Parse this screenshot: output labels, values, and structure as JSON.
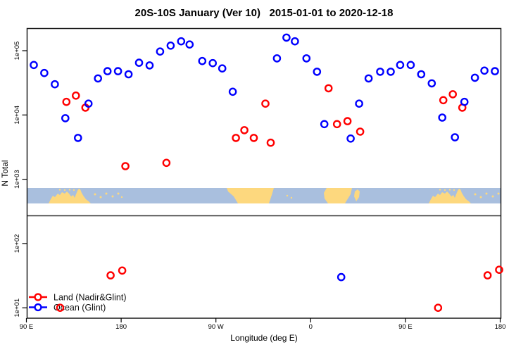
{
  "title": "20S-10S January (Ver 10)   2015-01-01 to 2020-12-18",
  "axes": {
    "x_label": "Longitude (deg E)",
    "y_label": "N Total",
    "x_ticks": [
      {
        "lon": 90,
        "label": "90 E"
      },
      {
        "lon": 180,
        "label": "180"
      },
      {
        "lon": 270,
        "label": "90 W"
      },
      {
        "lon": 360,
        "label": "0"
      },
      {
        "lon": 450,
        "label": "90 E"
      },
      {
        "lon": 540,
        "label": "180"
      }
    ],
    "y_ticks": [
      {
        "value": 100000,
        "label": "1e+05"
      },
      {
        "value": 10000,
        "label": "1e+04"
      },
      {
        "value": 1000,
        "label": "1e+03"
      },
      {
        "value": 100,
        "label": "1e+02"
      },
      {
        "value": 10,
        "label": "1e+01"
      }
    ]
  },
  "legend": {
    "items": [
      {
        "label": "Land (Nadir&Glint)",
        "color": "#ff0000"
      },
      {
        "label": "Ocean (Glint)",
        "color": "#0000ff"
      }
    ]
  },
  "colors": {
    "land_series": "#ff0000",
    "ocean_series": "#0000ff",
    "map_ocean": "#a9bfde",
    "map_land": "#fdd87e",
    "frame": "#1a1a1a"
  },
  "map_strip": {
    "ocean_color": "#a9bfde",
    "land_color": "#fdd87e",
    "land_paths": [
      "M30,22 L33,16 L36,11 L39,13 L43,8 L46,10 L49,6 L53,8 L56,5 L59,8 L62,12 L65,10 L67,14 L69,9 L71,4 L73,1 L75,2 L77,7 L80,12 L83,16 L87,19 L90,22 Z",
      "M283,0 L350,0 L347,10 L343,22 L299,22 L293,12 L285,5 Z",
      "M425,0 L461,0 L459,9 L454,17 L451,22 L427,22 L422,15 L421,7 Z",
      "M465,5 L469,2 L472,5 L471,13 L467,19 L464,12 Z"
    ],
    "island_dots": [
      [
        46,
        2.5,
        1.2
      ],
      [
        53,
        3,
        1.2
      ],
      [
        60,
        2.5,
        1.2
      ],
      [
        66,
        3,
        1.2
      ],
      [
        96,
        9,
        1.5
      ],
      [
        104,
        13,
        1.5
      ],
      [
        112,
        8,
        1.5
      ],
      [
        121,
        12,
        1.5
      ],
      [
        129,
        8,
        1.5
      ],
      [
        134,
        13,
        1.2
      ],
      [
        369,
        11,
        1.2
      ],
      [
        375,
        14,
        1.2
      ]
    ]
  },
  "chart_data": {
    "type": "scatter",
    "title": "20S-10S January (Ver 10)   2015-01-01 to 2020-12-18",
    "xlabel": "Longitude (deg E)",
    "ylabel": "N Total",
    "x_axis": {
      "range": [
        88,
        542
      ],
      "ticks": [
        90,
        180,
        270,
        360,
        450,
        540
      ],
      "tick_labels": [
        "90 E",
        "180",
        "90 W",
        "0",
        "90 E",
        "180"
      ]
    },
    "y_axis": {
      "scale": "log",
      "ticks": [
        100000,
        10000,
        1000,
        100,
        10
      ],
      "tick_labels": [
        "1e+05",
        "1e+04",
        "1e+03",
        "1e+02",
        "1e+01"
      ]
    },
    "point_format": [
      "longitude_degE_continuous",
      "N_total"
    ],
    "series": [
      {
        "name": "Land (Nadir&Glint)",
        "color": "#ff0000",
        "marker": "open-circle",
        "points": [
          [
            128,
            16000
          ],
          [
            137,
            20000
          ],
          [
            146,
            13000
          ],
          [
            184,
            1600
          ],
          [
            223,
            1800
          ],
          [
            289,
            4400
          ],
          [
            297,
            5800
          ],
          [
            306,
            4400
          ],
          [
            317,
            15000
          ],
          [
            322,
            3700
          ],
          [
            377,
            26000
          ],
          [
            385,
            7200
          ],
          [
            395,
            8000
          ],
          [
            407,
            5500
          ],
          [
            486,
            17000
          ],
          [
            495,
            21000
          ],
          [
            504,
            13000
          ],
          [
            122,
            10
          ],
          [
            170,
            32
          ],
          [
            181,
            38
          ],
          [
            481,
            10
          ],
          [
            528,
            32
          ],
          [
            539,
            39
          ]
        ]
      },
      {
        "name": "Ocean (Glint)",
        "color": "#0000ff",
        "marker": "open-circle",
        "points": [
          [
            97,
            60000
          ],
          [
            107,
            45000
          ],
          [
            117,
            30000
          ],
          [
            127,
            8900
          ],
          [
            139,
            4400
          ],
          [
            149,
            15000
          ],
          [
            158,
            37000
          ],
          [
            167,
            48000
          ],
          [
            177,
            48000
          ],
          [
            187,
            43000
          ],
          [
            197,
            65000
          ],
          [
            207,
            59000
          ],
          [
            217,
            97000
          ],
          [
            227,
            120000
          ],
          [
            237,
            140000
          ],
          [
            245,
            125000
          ],
          [
            257,
            69000
          ],
          [
            267,
            64000
          ],
          [
            276,
            53000
          ],
          [
            286,
            23000
          ],
          [
            328,
            76000
          ],
          [
            337,
            160000
          ],
          [
            345,
            140000
          ],
          [
            356,
            76000
          ],
          [
            366,
            47000
          ],
          [
            373,
            7200
          ],
          [
            398,
            4300
          ],
          [
            406,
            15000
          ],
          [
            415,
            37000
          ],
          [
            426,
            47000
          ],
          [
            436,
            47000
          ],
          [
            445,
            60000
          ],
          [
            455,
            60000
          ],
          [
            465,
            43000
          ],
          [
            475,
            31000
          ],
          [
            485,
            9100
          ],
          [
            497,
            4500
          ],
          [
            506,
            16000
          ],
          [
            516,
            38000
          ],
          [
            525,
            49000
          ],
          [
            535,
            48000
          ],
          [
            389,
            30
          ]
        ]
      }
    ]
  }
}
